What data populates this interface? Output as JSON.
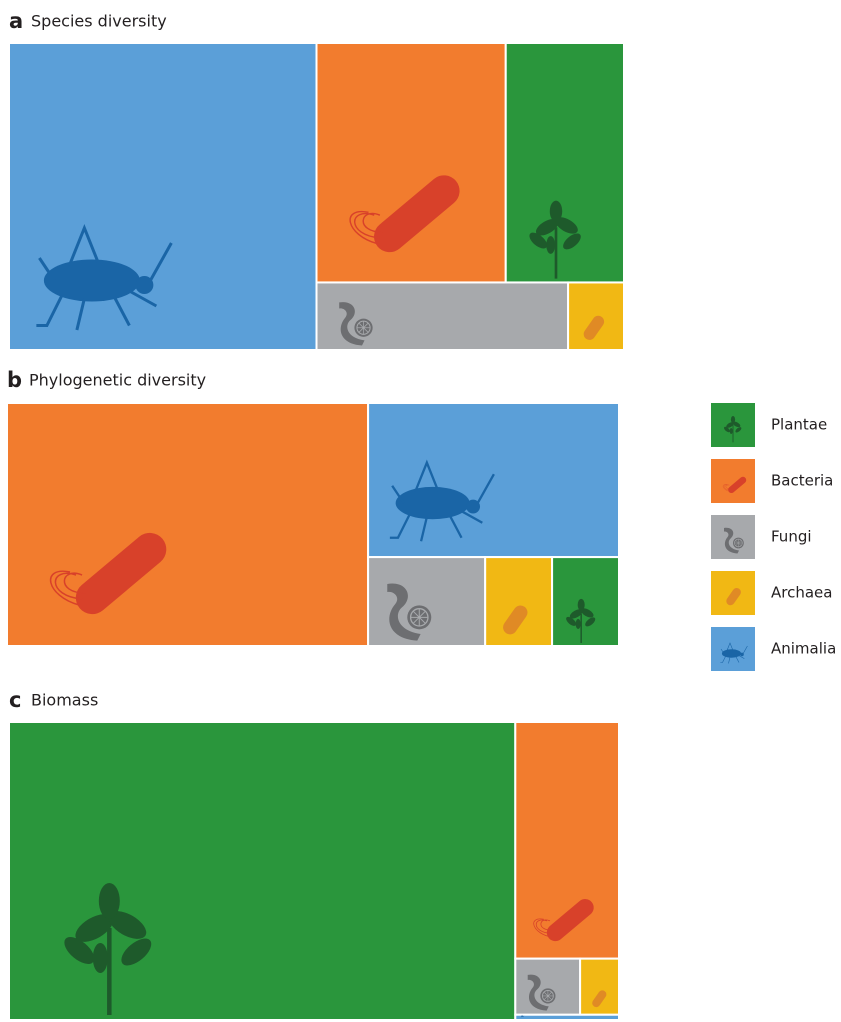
{
  "chart_data": [
    {
      "type": "treemap",
      "panel_label": "a",
      "title": "Species diversity",
      "categories": [
        "Animalia",
        "Bacteria",
        "Plantae",
        "Fungi",
        "Archaea"
      ],
      "values": [
        50,
        24,
        15,
        9,
        2
      ]
    },
    {
      "type": "treemap",
      "panel_label": "b",
      "title": "Phylogenetic diversity",
      "categories": [
        "Bacteria",
        "Animalia",
        "Fungi",
        "Archaea",
        "Plantae"
      ],
      "values": [
        59,
        26,
        7,
        4,
        4
      ]
    },
    {
      "type": "treemap",
      "panel_label": "c",
      "title": "Biomass",
      "categories": [
        "Plantae",
        "Bacteria",
        "Fungi",
        "Archaea",
        "Animalia"
      ],
      "values": [
        83,
        13.5,
        2,
        1.2,
        0.3
      ]
    }
  ],
  "legend": {
    "entries": [
      {
        "name": "Plantae",
        "color": "#2a963c"
      },
      {
        "name": "Bacteria",
        "color": "#f27c2e"
      },
      {
        "name": "Fungi",
        "color": "#a7a9ac"
      },
      {
        "name": "Archaea",
        "color": "#f1b814"
      },
      {
        "name": "Animalia",
        "color": "#5b9fd8"
      }
    ]
  }
}
